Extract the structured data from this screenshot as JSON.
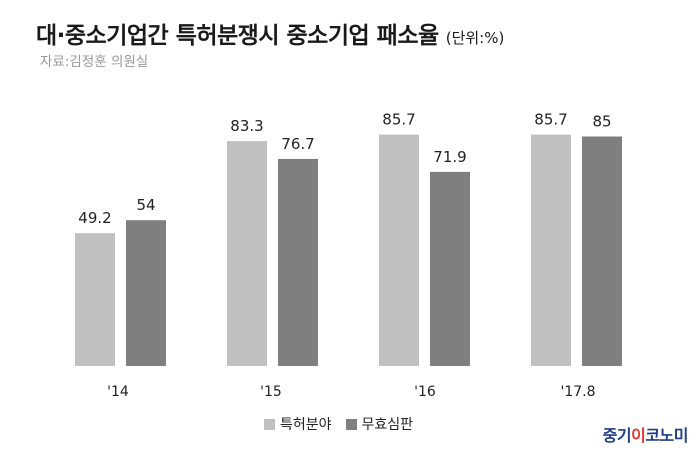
{
  "header": {
    "title": "대·중소기업간 특허분쟁시 중소기업 패소율",
    "unit": "(단위:%)",
    "source": "자료:김정훈 의원실"
  },
  "logo": {
    "text_a": "중기",
    "text_b": "이",
    "text_c": "코노미"
  },
  "chart_data": {
    "type": "bar",
    "title": "대·중소기업간 특허분쟁시 중소기업 패소율",
    "categories": [
      "'14",
      "'15",
      "'16",
      "'17.8"
    ],
    "series": [
      {
        "name": "특허분야",
        "values": [
          49.2,
          83.3,
          85.7,
          85.7
        ],
        "labels": [
          "49.2",
          "83.3",
          "85.7",
          "85.7"
        ],
        "color": "#c0c0c0"
      },
      {
        "name": "무효심판",
        "values": [
          54,
          76.7,
          71.9,
          85
        ],
        "labels": [
          "54",
          "76.7",
          "71.9",
          "85"
        ],
        "color": "#7f7f7f"
      }
    ],
    "ylim": [
      0,
      100
    ],
    "grid": false,
    "legend_position": "bottom"
  }
}
